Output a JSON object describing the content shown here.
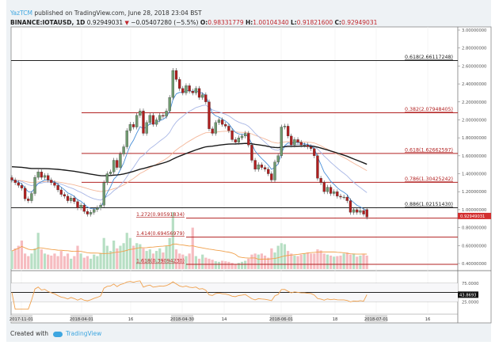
{
  "header": {
    "user": "YazTCM",
    "published": "published on TradingView.com, June 28, 2018 23:04 BST",
    "symbol": "BINANCE:IOTAUSD, 1D",
    "last": "0.92949031",
    "change": "−0.05407280 (−5.5%)",
    "o_label": "O:",
    "o": "0.98331779",
    "h_label": "H:",
    "h": "1.00104340",
    "l_label": "L:",
    "l": "0.91821600",
    "c_label": "C:",
    "c": "0.92949031"
  },
  "footer": {
    "created_with": "Created with",
    "brand": "TradingView"
  },
  "colors": {
    "up": "#6f9a6f",
    "down": "#b01e1e",
    "fib_red": "#b22222",
    "fib_black": "#222222",
    "ema_fast": "#4a90d9",
    "ema_mid": "#a9b7e6",
    "ema_slow": "#f4b79a",
    "ma_long": "#1a1a1a",
    "rsi": "#f0a04b",
    "vol_up": "#b7dfc4",
    "vol_down": "#f6bcc0"
  },
  "chart_data": {
    "type": "candlestick",
    "price_axis": {
      "min": 0.4,
      "max": 3.0,
      "ticks": [
        "3.00000000",
        "2.80000000",
        "2.60000000",
        "2.40000000",
        "2.20000000",
        "2.00000000",
        "1.80000000",
        "1.60000000",
        "1.40000000",
        "1.20000000",
        "1.00000000",
        "0.80000000",
        "0.60000000",
        "0.40000000"
      ]
    },
    "current_price_tag": "0.92949031",
    "closes": [
      1.33,
      1.3,
      1.27,
      1.24,
      1.12,
      1.1,
      1.18,
      1.36,
      1.42,
      1.36,
      1.38,
      1.33,
      1.3,
      1.27,
      1.22,
      1.17,
      1.15,
      1.1,
      1.13,
      1.09,
      1.02,
      1.05,
      0.98,
      0.95,
      0.97,
      1.0,
      1.02,
      1.05,
      1.3,
      1.4,
      1.42,
      1.55,
      1.47,
      1.62,
      1.7,
      1.88,
      1.95,
      1.92,
      2.05,
      2.1,
      1.85,
      1.97,
      2.05,
      1.95,
      2.0,
      2.05,
      2.04,
      2.1,
      2.25,
      2.55,
      2.45,
      2.35,
      2.3,
      2.38,
      2.32,
      2.3,
      2.35,
      2.25,
      2.28,
      2.2,
      1.9,
      1.85,
      1.97,
      2.0,
      1.95,
      1.93,
      1.88,
      1.78,
      1.75,
      1.8,
      1.82,
      1.85,
      1.72,
      1.55,
      1.45,
      1.5,
      1.47,
      1.45,
      1.4,
      1.33,
      1.53,
      1.6,
      1.92,
      1.93,
      1.82,
      1.72,
      1.78,
      1.75,
      1.72,
      1.72,
      1.7,
      1.68,
      1.6,
      1.35,
      1.3,
      1.2,
      1.25,
      1.18,
      1.2,
      1.15,
      1.14,
      1.14,
      1.1,
      0.97,
      1.0,
      0.97,
      0.99,
      0.95,
      0.92949031
    ],
    "last_candle": {
      "open": 0.98331779,
      "high": 1.0010434,
      "low": 0.918216,
      "close": 0.92949031
    },
    "volume": [
      35,
      40,
      45,
      55,
      30,
      25,
      30,
      40,
      70,
      38,
      30,
      28,
      26,
      30,
      25,
      35,
      25,
      30,
      20,
      25,
      45,
      30,
      22,
      25,
      20,
      28,
      25,
      30,
      60,
      45,
      35,
      55,
      40,
      45,
      50,
      70,
      60,
      45,
      50,
      48,
      40,
      35,
      38,
      30,
      35,
      40,
      32,
      45,
      60,
      110,
      38,
      30,
      28,
      25,
      30,
      80,
      25,
      20,
      28,
      22,
      20,
      18,
      15,
      14,
      16,
      15,
      14,
      12,
      10,
      12,
      14,
      16,
      20,
      28,
      30,
      28,
      30,
      26,
      22,
      40,
      32,
      45,
      50,
      48,
      35,
      30,
      26,
      25,
      28,
      30,
      32,
      30,
      30,
      38,
      36,
      30,
      28,
      26,
      24,
      25,
      26,
      30,
      32,
      28,
      30,
      24,
      26,
      28,
      26
    ],
    "fibs": [
      {
        "label": "0.618(2.66117248)",
        "price": 2.66117248,
        "color": "black",
        "span": "full"
      },
      {
        "label": "0.382(2.07948405)",
        "price": 2.07948405,
        "color": "red",
        "span": "mid"
      },
      {
        "label": "0.618(1.62662597)",
        "price": 1.62662597,
        "color": "red",
        "span": "mid"
      },
      {
        "label": "0.786(1.30425242)",
        "price": 1.30425242,
        "color": "red",
        "span": "mid"
      },
      {
        "label": "0.886(1.02151430)",
        "price": 1.0215143,
        "color": "black",
        "span": "full"
      },
      {
        "label": "1.272(0.90591834)",
        "price": 0.90591834,
        "color": "red",
        "span": "late"
      },
      {
        "label": "1.414(0.69456979)",
        "price": 0.69456979,
        "color": "red",
        "span": "late"
      },
      {
        "label": "1.618(0.39094230)",
        "price": 0.3909423,
        "color": "red",
        "span": "late"
      }
    ],
    "rsi": {
      "ticks": [
        "75.0000",
        "25.0000"
      ],
      "levels": [
        75,
        50,
        25
      ],
      "current_tag": "43.8693",
      "current": 43.8693
    },
    "x_ticks": [
      "2017-11-01",
      "2018-04-01",
      "16",
      "2018-04-30",
      "14",
      "2018-06-01",
      "18",
      "2018-07-01",
      "16"
    ]
  }
}
